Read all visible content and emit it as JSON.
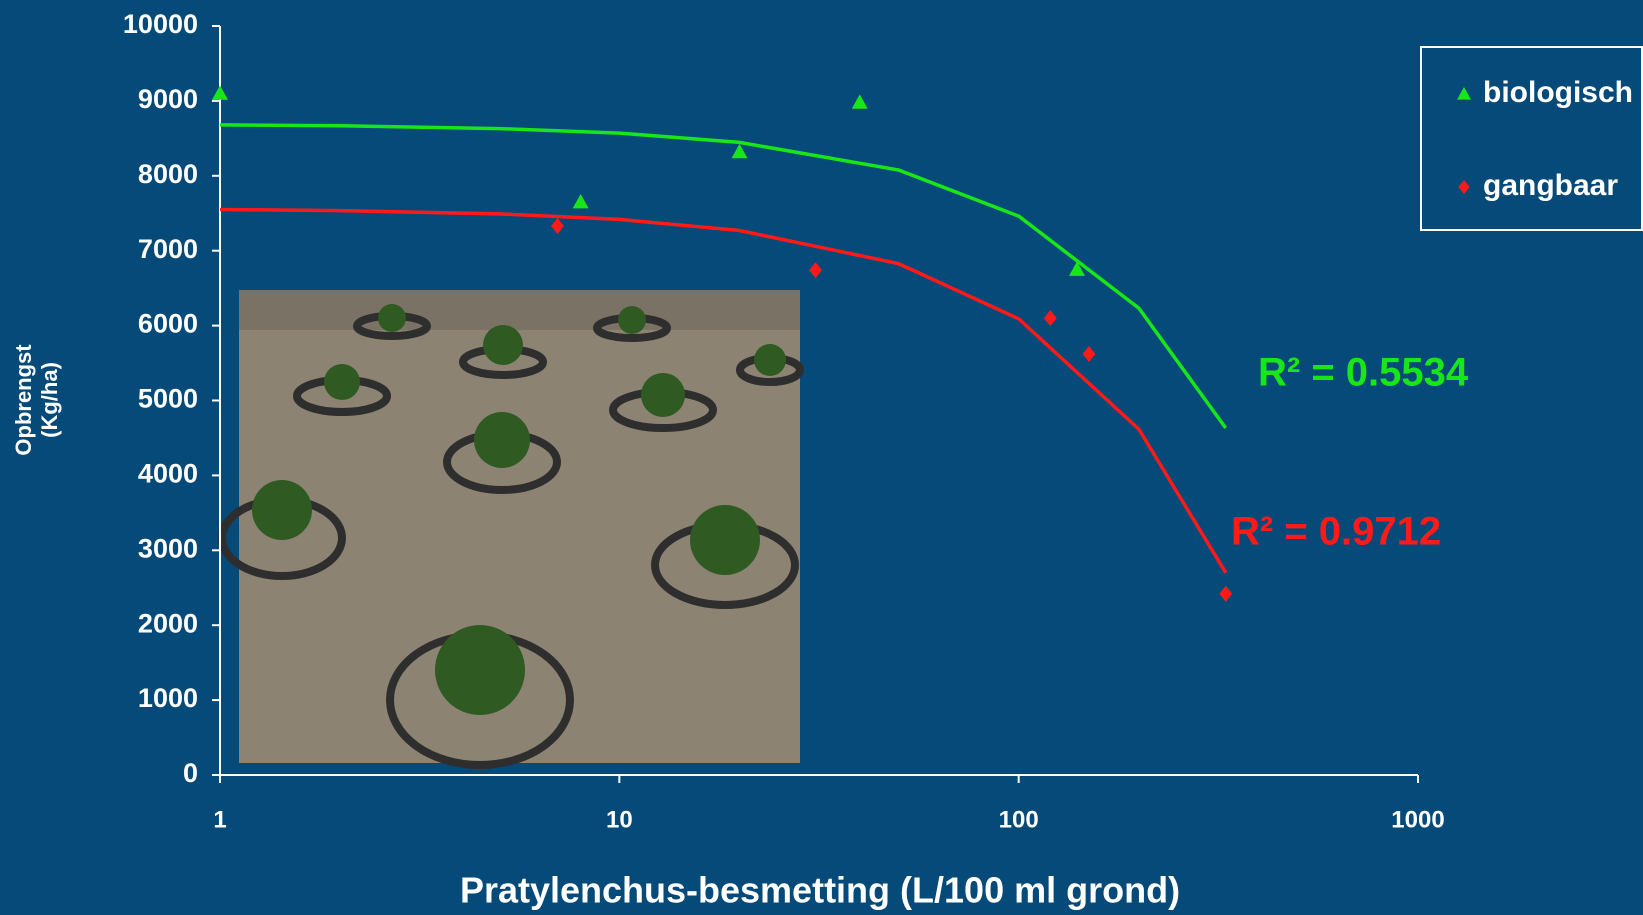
{
  "chart_data": {
    "type": "scatter",
    "xlabel": "Pratylenchus-besmetting (L/100 ml grond)",
    "ylabel": [
      "Opbrengst",
      "(Kg/ha)"
    ],
    "xscale": "log",
    "xlim": [
      1,
      1000
    ],
    "ylim": [
      0,
      10000
    ],
    "xticks": [
      1,
      10,
      100,
      1000
    ],
    "yticks": [
      0,
      1000,
      2000,
      3000,
      4000,
      5000,
      6000,
      7000,
      8000,
      9000,
      10000
    ],
    "legend_position": "upper right",
    "series": [
      {
        "name": "biologisch",
        "color": "#19e619",
        "marker": "triangle",
        "x": [
          1,
          8,
          20,
          40,
          140
        ],
        "values": [
          9100,
          7650,
          8320,
          8980,
          6750
        ],
        "trendline": {
          "x": [
            1,
            2,
            5,
            10,
            20,
            50,
            100,
            200,
            330
          ],
          "values": [
            8680,
            8668,
            8630,
            8570,
            8446,
            8077,
            7462,
            6232,
            4633
          ]
        },
        "annotation": "R² = 0.5534"
      },
      {
        "name": "gangbaar",
        "color": "#ff1a1a",
        "marker": "diamond",
        "x": [
          7,
          31,
          120,
          150,
          330
        ],
        "values": [
          7330,
          6740,
          6100,
          5620,
          2420
        ],
        "trendline": {
          "x": [
            1,
            2,
            5,
            10,
            20,
            50,
            100,
            200,
            330
          ],
          "values": [
            7550,
            7536,
            7491,
            7418,
            7270,
            6828,
            6091,
            4617,
            2701
          ]
        },
        "annotation": "R² = 0.9712"
      }
    ]
  }
}
